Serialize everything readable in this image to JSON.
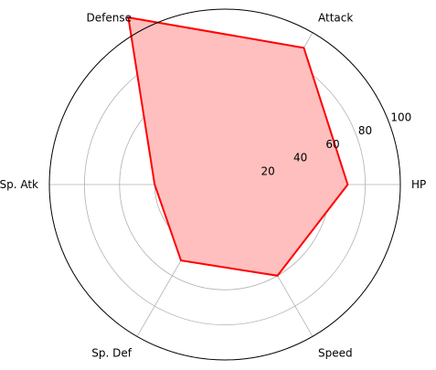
{
  "chart_data": {
    "type": "radar",
    "axes": [
      "HP",
      "Attack",
      "Defense",
      "Sp. Atk",
      "Sp. Def",
      "Speed"
    ],
    "values": [
      70,
      90,
      110,
      40,
      50,
      60
    ],
    "rlim": [
      0,
      100
    ],
    "r_ticks": [
      20,
      40,
      60,
      80,
      100
    ],
    "grid": true,
    "fill_color": "#ffbfbf",
    "line_color": "#ff0000",
    "grid_color": "#b0b0b0"
  }
}
